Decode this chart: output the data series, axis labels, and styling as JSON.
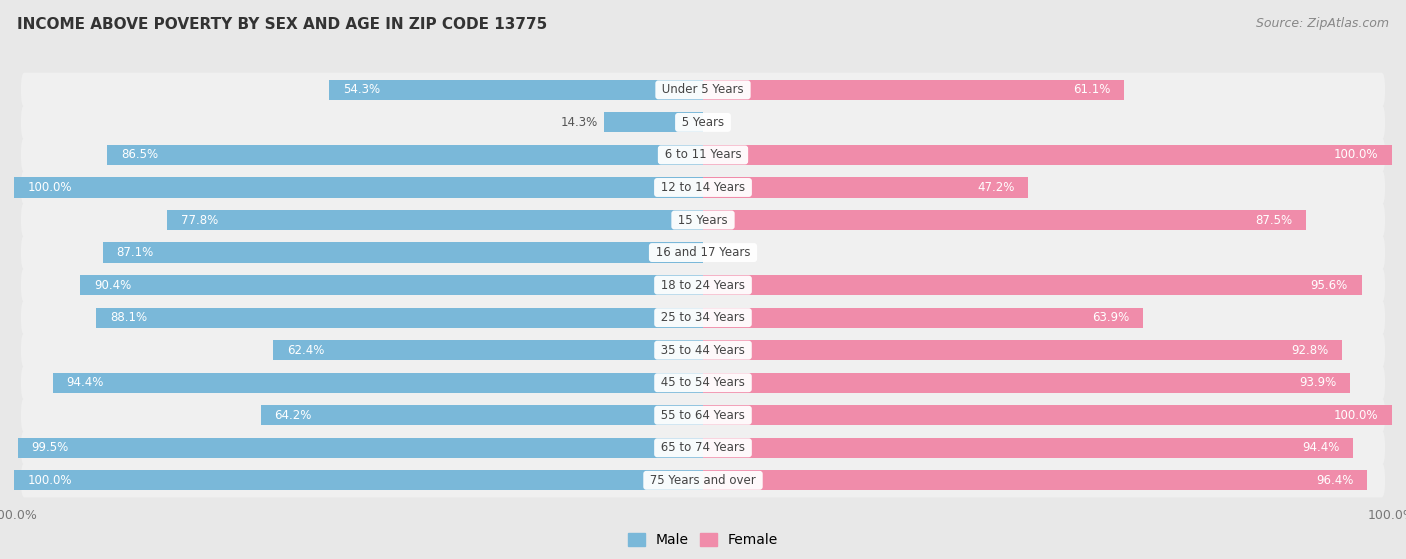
{
  "title": "INCOME ABOVE POVERTY BY SEX AND AGE IN ZIP CODE 13775",
  "source": "Source: ZipAtlas.com",
  "categories": [
    "Under 5 Years",
    "5 Years",
    "6 to 11 Years",
    "12 to 14 Years",
    "15 Years",
    "16 and 17 Years",
    "18 to 24 Years",
    "25 to 34 Years",
    "35 to 44 Years",
    "45 to 54 Years",
    "55 to 64 Years",
    "65 to 74 Years",
    "75 Years and over"
  ],
  "male_values": [
    54.3,
    14.3,
    86.5,
    100.0,
    77.8,
    87.1,
    90.4,
    88.1,
    62.4,
    94.4,
    64.2,
    99.5,
    100.0
  ],
  "female_values": [
    61.1,
    0.0,
    100.0,
    47.2,
    87.5,
    0.0,
    95.6,
    63.9,
    92.8,
    93.9,
    100.0,
    94.4,
    96.4
  ],
  "male_color": "#7ab8d9",
  "female_color": "#f08caa",
  "male_label": "Male",
  "female_label": "Female",
  "background_color": "#e8e8e8",
  "row_bg_color": "#f0f0f0",
  "bar_height": 0.62,
  "title_fontsize": 11,
  "source_fontsize": 9,
  "label_fontsize": 8.5,
  "cat_fontsize": 8.5,
  "tick_fontsize": 9,
  "legend_fontsize": 10
}
